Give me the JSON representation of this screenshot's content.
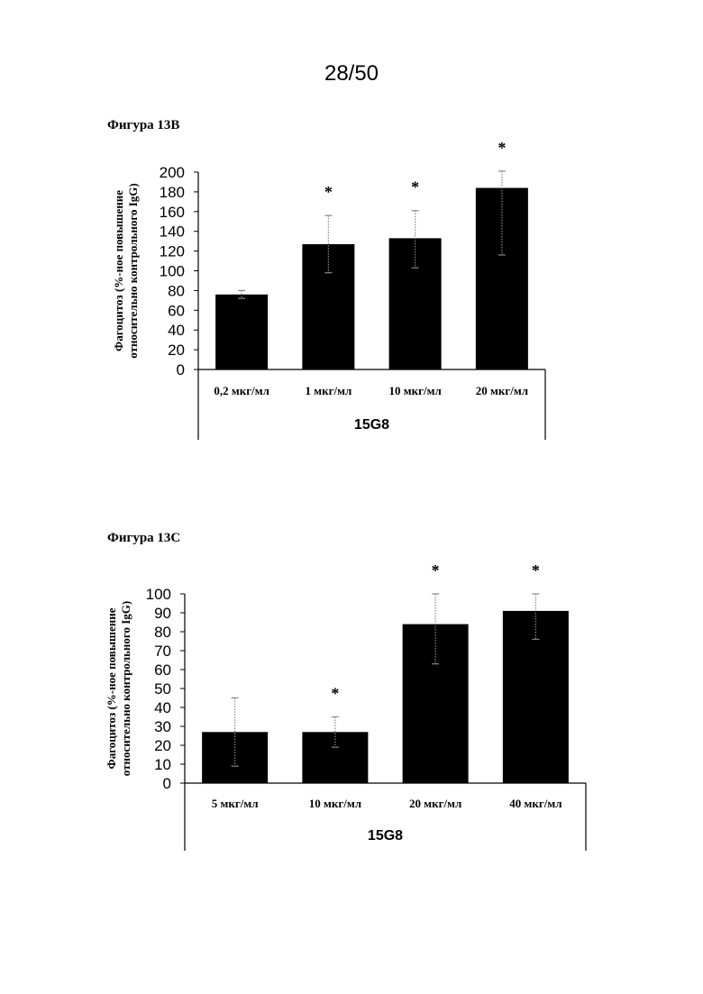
{
  "page_number": "28/50",
  "chart_data": [
    {
      "figure_label": "Фигура 13B",
      "type": "bar",
      "group_label": "15G8",
      "ylabel": [
        "Фагоцитоз (%-ное повышение",
        "относительно контрольного IgG)"
      ],
      "categories": [
        "0,2 мкг/мл",
        "1 мкг/мл",
        "10 мкг/мл",
        "20 мкг/мл"
      ],
      "values": [
        76,
        127,
        133,
        184
      ],
      "error_low": [
        72,
        98,
        103,
        116
      ],
      "error_high": [
        80,
        156,
        161,
        201
      ],
      "significance": [
        "",
        "*",
        "*",
        "*"
      ],
      "ylim": [
        0,
        200
      ],
      "yticks": [
        0,
        20,
        40,
        60,
        80,
        100,
        120,
        140,
        160,
        180,
        200
      ],
      "bar_color": "#000000",
      "grid": false
    },
    {
      "figure_label": "Фигура 13C",
      "type": "bar",
      "group_label": "15G8",
      "ylabel": [
        "Фагоцитоз (%-ное повышение",
        "относительно контрольного IgG)"
      ],
      "categories": [
        "5 мкг/мл",
        "10 мкг/мл",
        "20 мкг/мл",
        "40 мкг/мл"
      ],
      "values": [
        27,
        27,
        84,
        91
      ],
      "error_low": [
        9,
        19,
        63,
        76
      ],
      "error_high": [
        45,
        35,
        100,
        100
      ],
      "significance": [
        "",
        "*",
        "*",
        "*"
      ],
      "ylim": [
        0,
        100
      ],
      "yticks": [
        0,
        10,
        20,
        30,
        40,
        50,
        60,
        70,
        80,
        90,
        100
      ],
      "bar_color": "#000000",
      "grid": false
    }
  ]
}
